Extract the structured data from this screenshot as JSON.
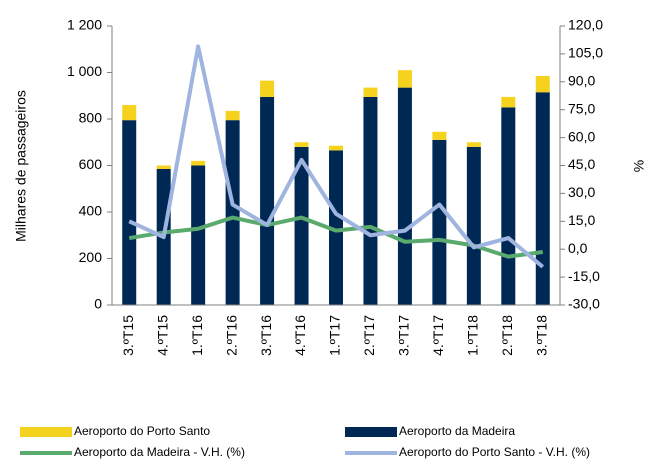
{
  "chart_data": {
    "type": "bar",
    "categories": [
      "3.ºT15",
      "4.ºT15",
      "1.ºT16",
      "2.ºT16",
      "3.ºT16",
      "4.ºT16",
      "1.ºT17",
      "2.ºT17",
      "3.ºT17",
      "4.ºT17",
      "1.ºT18",
      "2.ºT18",
      "3.ºT18"
    ],
    "series": [
      {
        "name": "Aeroporto da Madeira",
        "kind": "bar",
        "color": "#002855",
        "values": [
          795,
          585,
          600,
          795,
          895,
          680,
          665,
          895,
          935,
          710,
          680,
          850,
          915
        ]
      },
      {
        "name": "Aeroporto do Porto Santo",
        "kind": "bar",
        "color": "#f5d21e",
        "values": [
          65,
          15,
          20,
          40,
          70,
          20,
          20,
          40,
          75,
          35,
          20,
          45,
          70
        ]
      },
      {
        "name": "Aeroporto da Madeira - V.H. (%)",
        "kind": "line",
        "axis": "y2",
        "color": "#5aaa6e",
        "values": [
          6,
          9,
          11,
          17,
          13,
          17,
          10,
          12,
          4,
          5,
          2,
          -4,
          -1.5
        ]
      },
      {
        "name": "Aeroporto do Porto Santo - V.H. (%)",
        "kind": "line",
        "axis": "y2",
        "color": "#a0b4e0",
        "values": [
          15,
          6.5,
          109,
          24,
          13,
          48,
          19,
          7.5,
          10,
          24,
          1,
          6,
          -9.5
        ]
      }
    ],
    "y_label": "Milhares de passageiros",
    "y2_label": "%",
    "ylim": [
      0,
      1200
    ],
    "yticks": [
      0,
      200,
      400,
      600,
      800,
      {
        "value": 1000,
        "label": "1 000"
      },
      {
        "value": 1200,
        "label": "1 200"
      }
    ],
    "y2lim": [
      -30,
      120
    ],
    "y2ticks": [
      {
        "value": -30,
        "label": "-30,0"
      },
      {
        "value": -15,
        "label": "-15,0"
      },
      {
        "value": 0,
        "label": "0,0"
      },
      {
        "value": 15,
        "label": "15,0"
      },
      {
        "value": 30,
        "label": "30,0"
      },
      {
        "value": 45,
        "label": "45,0"
      },
      {
        "value": 60,
        "label": "60,0"
      },
      {
        "value": 75,
        "label": "75,0"
      },
      {
        "value": 90,
        "label": "90,0"
      },
      {
        "value": 105,
        "label": "105,0"
      },
      {
        "value": 120,
        "label": "120,0"
      }
    ],
    "grid": false
  }
}
